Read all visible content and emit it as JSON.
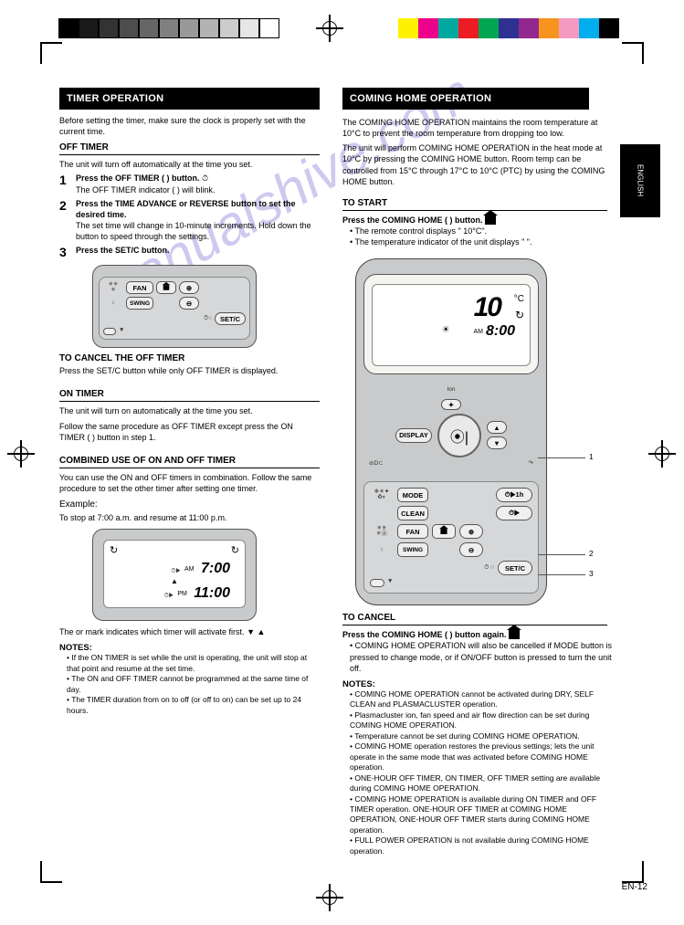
{
  "watermark": "manualshive.com",
  "page_number": "EN-12",
  "side_tab": "ENGLISH",
  "left": {
    "title": "TIMER OPERATION",
    "intro_head": "Before setting the timer, make sure the clock is properly set with the current time.",
    "off_timer_head": "OFF TIMER",
    "off_timer_rule_note": "The unit will turn off automatically at the time you set.",
    "step1_num": "1",
    "step1_text": "Press the OFF TIMER (   ) button.",
    "step1_sub": "The OFF TIMER indicator (   ) will blink.",
    "step2_num": "2",
    "step2_text": "Press the TIME ADVANCE or REVERSE button to set the desired time.",
    "step2_sub": "The set time will change in 10-minute increments. Hold down the button to speed through the settings.",
    "step3_num": "3",
    "step3_text": "Press the SET/C button.",
    "cancel_head": "TO CANCEL THE OFF TIMER",
    "cancel_text": "Press the SET/C button while only OFF TIMER is displayed.",
    "on_timer_head": "ON TIMER",
    "on_timer_rule_note": "The unit will turn on automatically at the time you set.",
    "on_timer_body": "Follow the same procedure as OFF TIMER except press the ON TIMER (   ) button in step 1.",
    "combined_head": "COMBINED USE OF ON AND OFF TIMER",
    "combined_body": "You can use the ON and OFF timers in combination. Follow the same procedure to set the other timer after setting one timer.",
    "example_head": "Example:",
    "example_text": "To stop at 7:00 a.m. and resume at 11:00 p.m.",
    "arrow_note": "The    or    mark indicates which timer will activate first.",
    "notes_head": "NOTES:",
    "note1": "If the ON TIMER is set while the unit is operating, the unit will stop at that point and resume at the set time.",
    "note2": "The ON and OFF TIMER cannot be programmed at the same time of day.",
    "note3": "The TIMER duration from on to off (or off to on) can be set up to 24 hours.",
    "mini_lcd1": {
      "fan_label": "FAN",
      "swing_label": "SWING",
      "setc": "SET/C"
    },
    "mini_lcd2": {
      "off_time": "7:00",
      "off_ampm": "AM",
      "on_time": "11:00",
      "on_ampm": "PM"
    }
  },
  "right": {
    "title": "COMING HOME OPERATION",
    "intro1": "The COMING HOME OPERATION maintains the room temperature at 10°C to prevent the room temperature from dropping too low.",
    "intro2": "The unit will perform COMING HOME OPERATION in the heat mode at 10°C by pressing the COMING HOME button. Room temp can be controlled from 15°C through 17°C to 10°C (PTC) by using the COMING HOME button.",
    "start_head": "TO START",
    "start_step": "Press the COMING HOME (   ) button.",
    "start_sub1": "• The remote control displays \"   10°C\".",
    "start_sub2": "• The temperature indicator of the unit displays \"   \".",
    "cancel_head": "TO CANCEL",
    "cancel_text": "Press the COMING HOME (   ) button again.",
    "cancel_sub": "• COMING HOME OPERATION will also be cancelled if MODE button is pressed to change mode, or if ON/OFF button is pressed to turn the unit off.",
    "notes_head": "NOTES:",
    "rnote1": "COMING HOME OPERATION cannot be activated during DRY, SELF CLEAN and PLASMACLUSTER operation.",
    "rnote2": "Plasmacluster ion, fan speed and air flow direction can be set during COMING HOME OPERATION.",
    "rnote3": "Temperature cannot be set during COMING HOME OPERATION.",
    "rnote4": "COMING HOME operation restores the previous settings; lets the unit operate in the same mode that was activated before COMING HOME operation.",
    "rnote5": "ONE-HOUR OFF TIMER, ON TIMER, OFF TIMER setting are available during COMING HOME OPERATION.",
    "rnote6": "COMING HOME OPERATION is available during ON TIMER and OFF TIMER operation. ONE-HOUR OFF TIMER at COMING HOME OPERATION, ONE-HOUR OFF TIMER starts during COMING HOME operation.",
    "rnote7": "FULL POWER OPERATION is not available during COMING HOME operation.",
    "callout1_num": "1",
    "callout2_num": "2",
    "callout3_num": "3",
    "remote": {
      "temp": "10",
      "unit": "°C",
      "clock": "8:00",
      "ampm": "AM",
      "display_btn": "DISPLAY",
      "mode_btn": "MODE",
      "clean_btn": "CLEAN",
      "fan_btn": "FAN",
      "swing_btn": "SWING",
      "setc_btn": "SET/C",
      "ion_lbl": "Ion"
    }
  },
  "colorbars": {
    "left": [
      "#000000",
      "#1a1a1a",
      "#333333",
      "#4d4d4d",
      "#666666",
      "#808080",
      "#999999",
      "#b3b3b3",
      "#cccccc",
      "#e6e6e6",
      "#ffffff"
    ],
    "right": [
      "#fff200",
      "#ec008c",
      "#00a99d",
      "#ed1c24",
      "#00a651",
      "#2e3192",
      "#92278f",
      "#f7941d",
      "#f49ac1",
      "#00aeef",
      "#000000"
    ]
  }
}
